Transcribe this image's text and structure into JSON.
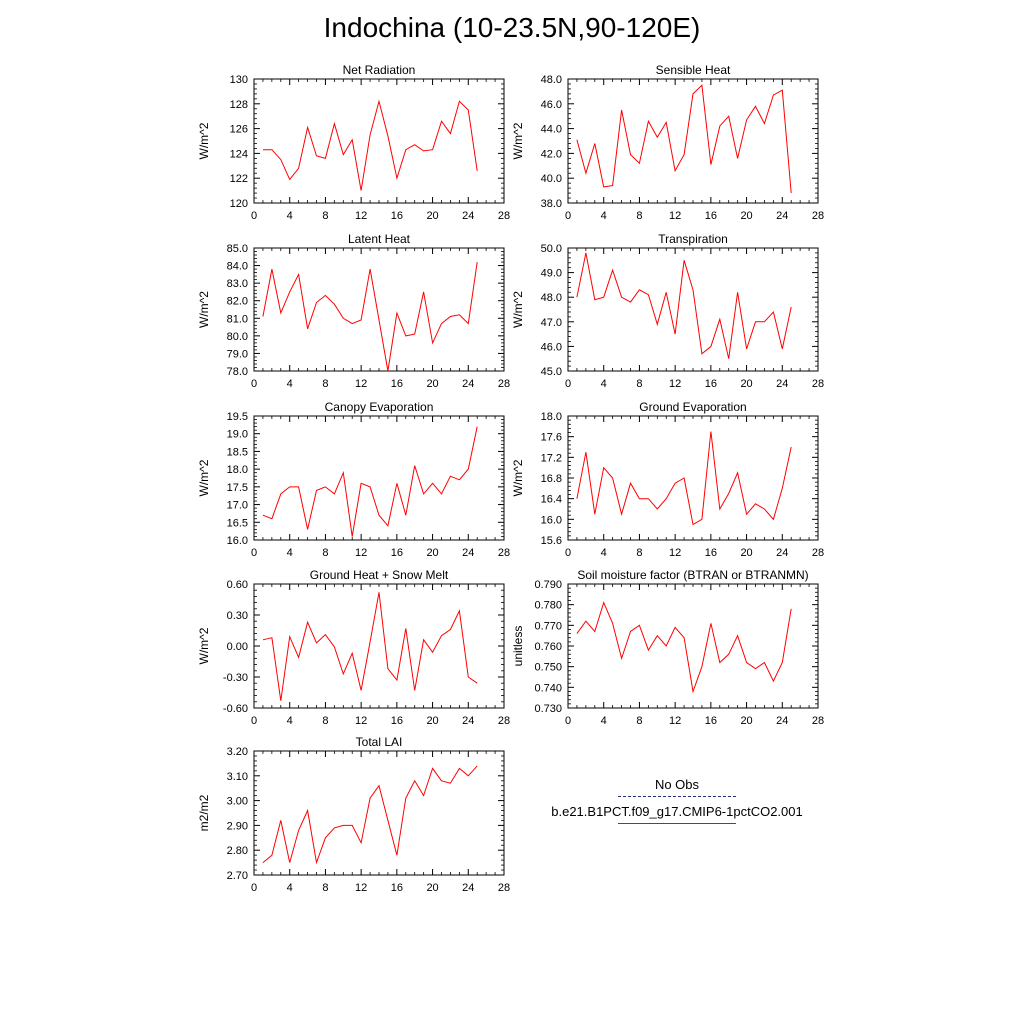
{
  "title": "Indochina (10-23.5N,90-120E)",
  "colors": {
    "model": "#ff0000",
    "obs": "#2a2a7a",
    "axis": "#000000"
  },
  "legend": {
    "obs_label": "No Obs",
    "model_label": "b.e21.B1PCT.f09_g17.CMIP6-1pctCO2.001"
  },
  "chart_data": [
    {
      "type": "line",
      "title": "Net Radiation",
      "ylabel": "W/m^2",
      "xlim": [
        0,
        28
      ],
      "xticks": [
        0,
        4,
        8,
        12,
        16,
        20,
        24,
        28
      ],
      "ylim": [
        120,
        130
      ],
      "yticks": [
        120,
        122,
        124,
        126,
        128,
        130
      ],
      "ytick_labels": [
        "120",
        "122",
        "124",
        "126",
        "128",
        "130"
      ],
      "series": [
        {
          "x": [
            1,
            2,
            3,
            4,
            5,
            6,
            7,
            8,
            9,
            10,
            11,
            12,
            13,
            14,
            15,
            16,
            17,
            18,
            19,
            20,
            21,
            22,
            23,
            24,
            25
          ],
          "values": [
            124.3,
            124.3,
            123.5,
            121.9,
            122.8,
            126.1,
            123.8,
            123.6,
            126.4,
            123.9,
            125.1,
            121.0,
            125.5,
            128.2,
            125.4,
            122.0,
            124.3,
            124.7,
            124.2,
            124.3,
            126.6,
            125.6,
            128.2,
            127.5,
            122.6
          ]
        }
      ]
    },
    {
      "type": "line",
      "title": "Sensible Heat",
      "ylabel": "W/m^2",
      "xlim": [
        0,
        28
      ],
      "xticks": [
        0,
        4,
        8,
        12,
        16,
        20,
        24,
        28
      ],
      "ylim": [
        38,
        48
      ],
      "yticks": [
        38,
        40,
        42,
        44,
        46,
        48
      ],
      "ytick_labels": [
        "38.0",
        "40.0",
        "42.0",
        "44.0",
        "46.0",
        "48.0"
      ],
      "series": [
        {
          "x": [
            1,
            2,
            3,
            4,
            5,
            6,
            7,
            8,
            9,
            10,
            11,
            12,
            13,
            14,
            15,
            16,
            17,
            18,
            19,
            20,
            21,
            22,
            23,
            24,
            25
          ],
          "values": [
            43.1,
            40.4,
            42.8,
            39.3,
            39.4,
            45.5,
            41.9,
            41.2,
            44.6,
            43.3,
            44.5,
            40.6,
            41.9,
            46.8,
            47.5,
            41.1,
            44.2,
            45.0,
            41.6,
            44.7,
            45.8,
            44.4,
            46.7,
            47.1,
            38.8
          ]
        }
      ]
    },
    {
      "type": "line",
      "title": "Latent Heat",
      "ylabel": "W/m^2",
      "xlim": [
        0,
        28
      ],
      "xticks": [
        0,
        4,
        8,
        12,
        16,
        20,
        24,
        28
      ],
      "ylim": [
        78,
        85
      ],
      "yticks": [
        78,
        79,
        80,
        81,
        82,
        83,
        84,
        85
      ],
      "ytick_labels": [
        "78.0",
        "79.0",
        "80.0",
        "81.0",
        "82.0",
        "83.0",
        "84.0",
        "85.0"
      ],
      "series": [
        {
          "x": [
            1,
            2,
            3,
            4,
            5,
            6,
            7,
            8,
            9,
            10,
            11,
            12,
            13,
            14,
            15,
            16,
            17,
            18,
            19,
            20,
            21,
            22,
            23,
            24,
            25
          ],
          "values": [
            81.1,
            83.8,
            81.3,
            82.5,
            83.5,
            80.4,
            81.9,
            82.3,
            81.8,
            81.0,
            80.7,
            80.9,
            83.8,
            80.9,
            78.0,
            81.3,
            80.0,
            80.1,
            82.5,
            79.6,
            80.7,
            81.1,
            81.2,
            80.7,
            84.2
          ]
        }
      ]
    },
    {
      "type": "line",
      "title": "Transpiration",
      "ylabel": "W/m^2",
      "xlim": [
        0,
        28
      ],
      "xticks": [
        0,
        4,
        8,
        12,
        16,
        20,
        24,
        28
      ],
      "ylim": [
        45,
        50
      ],
      "yticks": [
        45,
        46,
        47,
        48,
        49,
        50
      ],
      "ytick_labels": [
        "45.0",
        "46.0",
        "47.0",
        "48.0",
        "49.0",
        "50.0"
      ],
      "series": [
        {
          "x": [
            1,
            2,
            3,
            4,
            5,
            6,
            7,
            8,
            9,
            10,
            11,
            12,
            13,
            14,
            15,
            16,
            17,
            18,
            19,
            20,
            21,
            22,
            23,
            24,
            25
          ],
          "values": [
            48.0,
            49.8,
            47.9,
            48.0,
            49.1,
            48.0,
            47.8,
            48.3,
            48.1,
            46.9,
            48.2,
            46.5,
            49.5,
            48.3,
            45.7,
            46.0,
            47.1,
            45.5,
            48.2,
            45.9,
            47.0,
            47.0,
            47.4,
            45.9,
            47.6
          ]
        }
      ]
    },
    {
      "type": "line",
      "title": "Canopy Evaporation",
      "ylabel": "W/m^2",
      "xlim": [
        0,
        28
      ],
      "xticks": [
        0,
        4,
        8,
        12,
        16,
        20,
        24,
        28
      ],
      "ylim": [
        16,
        19.5
      ],
      "yticks": [
        16,
        16.5,
        17,
        17.5,
        18,
        18.5,
        19,
        19.5
      ],
      "ytick_labels": [
        "16.0",
        "16.5",
        "17.0",
        "17.5",
        "18.0",
        "18.5",
        "19.0",
        "19.5"
      ],
      "series": [
        {
          "x": [
            1,
            2,
            3,
            4,
            5,
            6,
            7,
            8,
            9,
            10,
            11,
            12,
            13,
            14,
            15,
            16,
            17,
            18,
            19,
            20,
            21,
            22,
            23,
            24,
            25
          ],
          "values": [
            16.7,
            16.6,
            17.3,
            17.5,
            17.5,
            16.3,
            17.4,
            17.5,
            17.3,
            17.9,
            16.1,
            17.6,
            17.5,
            16.7,
            16.4,
            17.6,
            16.7,
            18.1,
            17.3,
            17.6,
            17.3,
            17.8,
            17.7,
            18.0,
            19.2
          ]
        }
      ]
    },
    {
      "type": "line",
      "title": "Ground Evaporation",
      "ylabel": "W/m^2",
      "xlim": [
        0,
        28
      ],
      "xticks": [
        0,
        4,
        8,
        12,
        16,
        20,
        24,
        28
      ],
      "ylim": [
        15.6,
        18.0
      ],
      "yticks": [
        15.6,
        16.0,
        16.4,
        16.8,
        17.2,
        17.6,
        18.0
      ],
      "ytick_labels": [
        "15.6",
        "16.0",
        "16.4",
        "16.8",
        "17.2",
        "17.6",
        "18.0"
      ],
      "series": [
        {
          "x": [
            1,
            2,
            3,
            4,
            5,
            6,
            7,
            8,
            9,
            10,
            11,
            12,
            13,
            14,
            15,
            16,
            17,
            18,
            19,
            20,
            21,
            22,
            23,
            24,
            25
          ],
          "values": [
            16.4,
            17.3,
            16.1,
            17.0,
            16.8,
            16.1,
            16.7,
            16.4,
            16.4,
            16.2,
            16.4,
            16.7,
            16.8,
            15.9,
            16.0,
            17.7,
            16.2,
            16.5,
            16.9,
            16.1,
            16.3,
            16.2,
            16.0,
            16.6,
            17.4
          ]
        }
      ]
    },
    {
      "type": "line",
      "title": "Ground Heat + Snow Melt",
      "ylabel": "W/m^2",
      "xlim": [
        0,
        28
      ],
      "xticks": [
        0,
        4,
        8,
        12,
        16,
        20,
        24,
        28
      ],
      "ylim": [
        -0.6,
        0.6
      ],
      "yticks": [
        -0.6,
        -0.3,
        0,
        0.3,
        0.6
      ],
      "ytick_labels": [
        "-0.60",
        "-0.30",
        "0.00",
        "0.30",
        "0.60"
      ],
      "series": [
        {
          "x": [
            1,
            2,
            3,
            4,
            5,
            6,
            7,
            8,
            9,
            10,
            11,
            12,
            13,
            14,
            15,
            16,
            17,
            18,
            19,
            20,
            21,
            22,
            23,
            24,
            25
          ],
          "values": [
            0.06,
            0.08,
            -0.53,
            0.09,
            -0.11,
            0.23,
            0.03,
            0.11,
            -0.01,
            -0.27,
            -0.07,
            -0.43,
            0.04,
            0.52,
            -0.22,
            -0.33,
            0.17,
            -0.43,
            0.06,
            -0.06,
            0.1,
            0.16,
            0.34,
            -0.3,
            -0.36
          ]
        }
      ]
    },
    {
      "type": "line",
      "title": "Soil moisture factor (BTRAN or BTRANMN)",
      "ylabel": "unitless",
      "xlim": [
        0,
        28
      ],
      "xticks": [
        0,
        4,
        8,
        12,
        16,
        20,
        24,
        28
      ],
      "ylim": [
        0.73,
        0.79
      ],
      "yticks": [
        0.73,
        0.74,
        0.75,
        0.76,
        0.77,
        0.78,
        0.79
      ],
      "ytick_labels": [
        "0.730",
        "0.740",
        "0.750",
        "0.760",
        "0.770",
        "0.780",
        "0.790"
      ],
      "series": [
        {
          "x": [
            1,
            2,
            3,
            4,
            5,
            6,
            7,
            8,
            9,
            10,
            11,
            12,
            13,
            14,
            15,
            16,
            17,
            18,
            19,
            20,
            21,
            22,
            23,
            24,
            25
          ],
          "values": [
            0.766,
            0.772,
            0.767,
            0.781,
            0.771,
            0.754,
            0.767,
            0.77,
            0.758,
            0.765,
            0.76,
            0.769,
            0.764,
            0.738,
            0.75,
            0.771,
            0.752,
            0.756,
            0.765,
            0.752,
            0.749,
            0.752,
            0.743,
            0.752,
            0.778
          ]
        }
      ]
    },
    {
      "type": "line",
      "title": "Total LAI",
      "ylabel": "m2/m2",
      "xlim": [
        0,
        28
      ],
      "xticks": [
        0,
        4,
        8,
        12,
        16,
        20,
        24,
        28
      ],
      "ylim": [
        2.7,
        3.2
      ],
      "yticks": [
        2.7,
        2.8,
        2.9,
        3.0,
        3.1,
        3.2
      ],
      "ytick_labels": [
        "2.70",
        "2.80",
        "2.90",
        "3.00",
        "3.10",
        "3.20"
      ],
      "series": [
        {
          "x": [
            1,
            2,
            3,
            4,
            5,
            6,
            7,
            8,
            9,
            10,
            11,
            12,
            13,
            14,
            15,
            16,
            17,
            18,
            19,
            20,
            21,
            22,
            23,
            24,
            25
          ],
          "values": [
            2.75,
            2.78,
            2.92,
            2.75,
            2.88,
            2.96,
            2.75,
            2.85,
            2.89,
            2.9,
            2.9,
            2.83,
            3.01,
            3.06,
            2.92,
            2.78,
            3.01,
            3.08,
            3.02,
            3.13,
            3.08,
            3.07,
            3.13,
            3.1,
            3.14
          ]
        }
      ]
    }
  ]
}
